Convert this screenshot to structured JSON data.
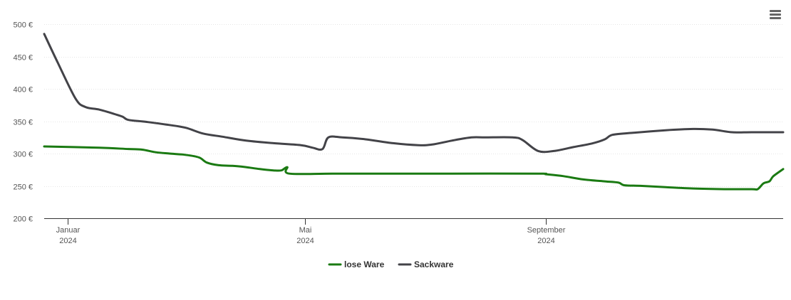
{
  "menu": {
    "icon": "hamburger-menu-icon"
  },
  "chart_data": {
    "type": "line",
    "title": "",
    "xlabel": "",
    "ylabel": "",
    "y_unit": "€",
    "ylim": [
      200,
      500
    ],
    "yticks": [
      200,
      250,
      300,
      350,
      400,
      450,
      500
    ],
    "ytick_labels": [
      "200 €",
      "250 €",
      "300 €",
      "350 €",
      "400 €",
      "450 €",
      "500 €"
    ],
    "xlim": [
      "2023-12-20",
      "2024-12-31"
    ],
    "xticks": [
      {
        "date": "2024-01-01",
        "month": "Januar",
        "year": "2024"
      },
      {
        "date": "2024-05-01",
        "month": "Mai",
        "year": "2024"
      },
      {
        "date": "2024-09-01",
        "month": "September",
        "year": "2024"
      }
    ],
    "grid": true,
    "legend_position": "bottom-center",
    "series": [
      {
        "name": "lose Ware",
        "color": "#1a7a12",
        "points": [
          [
            "2023-12-20",
            311
          ],
          [
            "2024-01-17",
            309
          ],
          [
            "2024-02-01",
            307
          ],
          [
            "2024-02-08",
            306
          ],
          [
            "2024-02-15",
            302
          ],
          [
            "2024-02-22",
            300
          ],
          [
            "2024-03-01",
            298
          ],
          [
            "2024-03-08",
            294
          ],
          [
            "2024-03-12",
            286
          ],
          [
            "2024-03-18",
            282
          ],
          [
            "2024-03-25",
            281
          ],
          [
            "2024-04-01",
            279
          ],
          [
            "2024-04-08",
            276
          ],
          [
            "2024-04-15",
            274
          ],
          [
            "2024-04-19",
            274
          ],
          [
            "2024-04-22",
            279
          ],
          [
            "2024-04-23",
            269
          ],
          [
            "2024-05-15",
            269
          ],
          [
            "2024-06-15",
            269
          ],
          [
            "2024-07-15",
            269
          ],
          [
            "2024-08-28",
            269
          ],
          [
            "2024-09-01",
            268
          ],
          [
            "2024-09-10",
            265
          ],
          [
            "2024-09-20",
            260
          ],
          [
            "2024-10-01",
            257
          ],
          [
            "2024-10-08",
            255
          ],
          [
            "2024-10-11",
            251
          ],
          [
            "2024-10-20",
            250
          ],
          [
            "2024-11-01",
            248
          ],
          [
            "2024-11-15",
            246
          ],
          [
            "2024-12-01",
            245
          ],
          [
            "2024-12-15",
            245
          ],
          [
            "2024-12-18",
            245
          ],
          [
            "2024-12-21",
            254
          ],
          [
            "2024-12-24",
            257
          ],
          [
            "2024-12-26",
            265
          ],
          [
            "2024-12-31",
            276
          ]
        ]
      },
      {
        "name": "Sackware",
        "color": "#434348",
        "points": [
          [
            "2023-12-20",
            485
          ],
          [
            "2023-12-27",
            440
          ],
          [
            "2024-01-05",
            385
          ],
          [
            "2024-01-10",
            372
          ],
          [
            "2024-01-17",
            368
          ],
          [
            "2024-01-25",
            361
          ],
          [
            "2024-01-29",
            357
          ],
          [
            "2024-02-01",
            352
          ],
          [
            "2024-02-10",
            349
          ],
          [
            "2024-02-20",
            345
          ],
          [
            "2024-03-01",
            340
          ],
          [
            "2024-03-10",
            331
          ],
          [
            "2024-03-20",
            326
          ],
          [
            "2024-04-01",
            320
          ],
          [
            "2024-04-15",
            316
          ],
          [
            "2024-04-29",
            313
          ],
          [
            "2024-05-05",
            309
          ],
          [
            "2024-05-10",
            307
          ],
          [
            "2024-05-13",
            325
          ],
          [
            "2024-05-20",
            325
          ],
          [
            "2024-06-01",
            322
          ],
          [
            "2024-06-15",
            316
          ],
          [
            "2024-06-28",
            313
          ],
          [
            "2024-07-05",
            314
          ],
          [
            "2024-07-15",
            320
          ],
          [
            "2024-07-25",
            325
          ],
          [
            "2024-08-01",
            325
          ],
          [
            "2024-08-15",
            325
          ],
          [
            "2024-08-20",
            321
          ],
          [
            "2024-08-28",
            304
          ],
          [
            "2024-09-05",
            304
          ],
          [
            "2024-09-15",
            310
          ],
          [
            "2024-09-25",
            316
          ],
          [
            "2024-10-01",
            322
          ],
          [
            "2024-10-05",
            329
          ],
          [
            "2024-10-15",
            332
          ],
          [
            "2024-11-01",
            336
          ],
          [
            "2024-11-15",
            338
          ],
          [
            "2024-11-25",
            337
          ],
          [
            "2024-12-05",
            333
          ],
          [
            "2024-12-15",
            333
          ],
          [
            "2024-12-31",
            333
          ]
        ]
      }
    ]
  }
}
